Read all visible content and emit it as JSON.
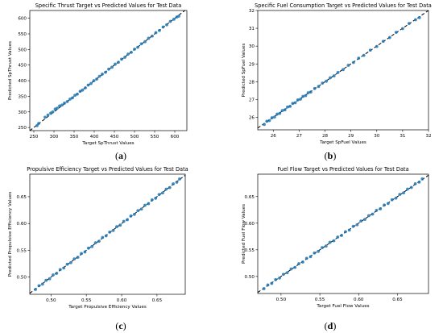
{
  "figure": {
    "panels": [
      {
        "letter": "(a)",
        "letter_bold": "a"
      },
      {
        "letter": "(b)",
        "letter_bold": "b"
      },
      {
        "letter": "(c)",
        "letter_bold": "c"
      },
      {
        "letter": "(d)",
        "letter_bold": "d"
      }
    ]
  },
  "chart_data": [
    {
      "type": "scatter",
      "title": "Specific Thrust Target vs Predicted Values for Test Data",
      "xlabel": "Target SpThrust Values",
      "ylabel": "Predicted SpThrust Values",
      "xlim": [
        240,
        630
      ],
      "ylim": [
        240,
        625
      ],
      "xticks": [
        250,
        300,
        350,
        400,
        450,
        500,
        550,
        600
      ],
      "yticks": [
        250,
        300,
        350,
        400,
        450,
        500,
        550,
        600
      ],
      "reference_line": "y = x (dashed, black)",
      "grid": false,
      "series": [
        {
          "color": "#1f77b4",
          "x": [
            258,
            262,
            278,
            285,
            292,
            297,
            303,
            308,
            314,
            320,
            326,
            333,
            340,
            346,
            352,
            358,
            365,
            371,
            378,
            385,
            392,
            399,
            406,
            413,
            420,
            428,
            436,
            444,
            452,
            460,
            468,
            476,
            484,
            492,
            500,
            508,
            517,
            526,
            535,
            544,
            553,
            562,
            571,
            580,
            589,
            598,
            605,
            610
          ],
          "y": [
            256,
            263,
            283,
            290,
            296,
            300,
            309,
            312,
            319,
            322,
            328,
            333,
            341,
            345,
            353,
            357,
            366,
            370,
            377,
            386,
            391,
            400,
            405,
            414,
            421,
            427,
            437,
            443,
            453,
            459,
            469,
            475,
            485,
            491,
            501,
            507,
            518,
            525,
            536,
            543,
            554,
            561,
            572,
            579,
            590,
            597,
            604,
            607
          ]
        }
      ]
    },
    {
      "type": "scatter",
      "title": "Specific Fuel Consumption Target vs Predicted Values for Test Data",
      "xlabel": "Target SpFuel Values",
      "ylabel": "Predicted SpFuel Values",
      "xlim": [
        25.4,
        32.0
      ],
      "ylim": [
        25.3,
        32.0
      ],
      "xticks": [
        26,
        27,
        28,
        29,
        30,
        31,
        32
      ],
      "yticks": [
        26,
        27,
        28,
        29,
        30,
        31,
        32
      ],
      "reference_line": "y = x (dashed, black)",
      "grid": false,
      "series": [
        {
          "color": "#1f77b4",
          "x": [
            25.65,
            25.75,
            25.85,
            25.95,
            26.05,
            26.15,
            26.25,
            26.35,
            26.45,
            26.55,
            26.65,
            26.75,
            26.85,
            26.95,
            27.05,
            27.15,
            27.25,
            27.35,
            27.45,
            27.6,
            27.75,
            27.9,
            28.05,
            28.2,
            28.35,
            28.5,
            28.7,
            28.9,
            29.1,
            29.3,
            29.5,
            29.75,
            30.0,
            30.25,
            30.5,
            30.75,
            31.0,
            31.25,
            31.5,
            31.65
          ],
          "y": [
            25.6,
            25.78,
            25.82,
            25.98,
            26.02,
            26.18,
            26.22,
            26.38,
            26.42,
            26.58,
            26.62,
            26.78,
            26.82,
            26.98,
            27.02,
            27.18,
            27.22,
            27.38,
            27.42,
            27.62,
            27.73,
            27.92,
            28.03,
            28.22,
            28.33,
            28.52,
            28.68,
            28.92,
            29.08,
            29.32,
            29.48,
            29.77,
            29.98,
            30.27,
            30.48,
            30.77,
            30.98,
            31.27,
            31.48,
            31.6
          ]
        }
      ]
    },
    {
      "type": "scatter",
      "title": "Propulsive Efficiency Target vs Predicted Values for Test Data",
      "xlabel": "Target Propulsive Efficiency Values",
      "ylabel": "Predicted Propulsive Efficiency Values",
      "xlim": [
        0.47,
        0.69
      ],
      "ylim": [
        0.468,
        0.692
      ],
      "xticks": [
        0.5,
        0.55,
        0.6,
        0.65
      ],
      "yticks": [
        0.5,
        0.55,
        0.6,
        0.65
      ],
      "reference_line": "y = x (dashed, black)",
      "grid": false,
      "series": [
        {
          "color": "#1f77b4",
          "x": [
            0.478,
            0.483,
            0.488,
            0.493,
            0.498,
            0.503,
            0.508,
            0.513,
            0.518,
            0.523,
            0.528,
            0.533,
            0.538,
            0.543,
            0.548,
            0.553,
            0.558,
            0.563,
            0.568,
            0.573,
            0.578,
            0.583,
            0.588,
            0.593,
            0.598,
            0.603,
            0.608,
            0.613,
            0.618,
            0.623,
            0.628,
            0.633,
            0.638,
            0.643,
            0.648,
            0.653,
            0.658,
            0.663,
            0.668,
            0.673,
            0.678,
            0.682
          ],
          "y": [
            0.477,
            0.484,
            0.487,
            0.494,
            0.497,
            0.504,
            0.507,
            0.514,
            0.517,
            0.524,
            0.527,
            0.534,
            0.537,
            0.544,
            0.547,
            0.554,
            0.557,
            0.564,
            0.567,
            0.574,
            0.577,
            0.584,
            0.587,
            0.594,
            0.597,
            0.604,
            0.607,
            0.614,
            0.617,
            0.624,
            0.627,
            0.634,
            0.637,
            0.644,
            0.647,
            0.654,
            0.657,
            0.664,
            0.667,
            0.674,
            0.677,
            0.683
          ]
        }
      ]
    },
    {
      "type": "scatter",
      "title": "Fuel Flow Target vs Predicted Values for Test Data",
      "xlabel": "Target Fuel Flow Values",
      "ylabel": "Predicted Fuel Flow Values",
      "xlim": [
        0.47,
        0.69
      ],
      "ylim": [
        0.468,
        0.692
      ],
      "xticks": [
        0.5,
        0.55,
        0.6,
        0.65
      ],
      "yticks": [
        0.5,
        0.55,
        0.6,
        0.65
      ],
      "reference_line": "y = x (dashed, black)",
      "grid": false,
      "series": [
        {
          "color": "#1f77b4",
          "x": [
            0.478,
            0.483,
            0.488,
            0.493,
            0.498,
            0.503,
            0.508,
            0.513,
            0.518,
            0.523,
            0.528,
            0.533,
            0.538,
            0.543,
            0.548,
            0.553,
            0.558,
            0.563,
            0.568,
            0.573,
            0.578,
            0.583,
            0.588,
            0.593,
            0.598,
            0.603,
            0.608,
            0.613,
            0.618,
            0.623,
            0.628,
            0.633,
            0.638,
            0.643,
            0.648,
            0.653,
            0.658,
            0.663,
            0.668,
            0.673,
            0.678,
            0.682
          ],
          "y": [
            0.477,
            0.484,
            0.487,
            0.494,
            0.497,
            0.504,
            0.507,
            0.514,
            0.517,
            0.524,
            0.527,
            0.534,
            0.537,
            0.544,
            0.547,
            0.554,
            0.557,
            0.564,
            0.567,
            0.574,
            0.577,
            0.584,
            0.587,
            0.594,
            0.597,
            0.604,
            0.607,
            0.614,
            0.617,
            0.624,
            0.627,
            0.634,
            0.637,
            0.644,
            0.647,
            0.654,
            0.657,
            0.664,
            0.667,
            0.674,
            0.677,
            0.683
          ]
        }
      ]
    }
  ]
}
